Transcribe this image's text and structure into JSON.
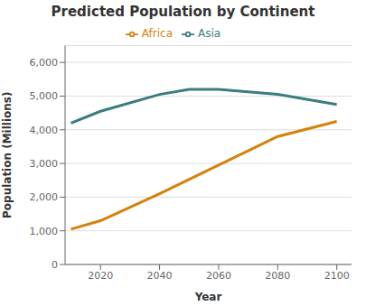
{
  "chart_data": {
    "type": "line",
    "title": "Predicted Population by Continent",
    "xlabel": "Year",
    "ylabel": "Population (Millions)",
    "series": [
      {
        "name": "Asia",
        "color": "#3a7d7e",
        "x": [
          2010,
          2020,
          2040,
          2050,
          2060,
          2080,
          2100
        ],
        "values": [
          4200,
          4550,
          5050,
          5200,
          5200,
          5050,
          4750
        ]
      },
      {
        "name": "Africa",
        "color": "#d4820a",
        "x": [
          2010,
          2020,
          2040,
          2060,
          2080,
          2100
        ],
        "values": [
          1050,
          1300,
          2100,
          2950,
          3800,
          4250
        ]
      }
    ],
    "xlim": [
      2008,
      2105
    ],
    "xticks": [
      2020,
      2040,
      2060,
      2080,
      2100
    ],
    "ylim": [
      0,
      6500
    ],
    "yticks": [
      0,
      {
        "value": 1000,
        "label": "1,000"
      },
      {
        "value": 2000,
        "label": "2,000"
      },
      {
        "value": 3000,
        "label": "3,000"
      },
      {
        "value": 4000,
        "label": "4,000"
      },
      {
        "value": 5000,
        "label": "5,000"
      },
      {
        "value": 6000,
        "label": "6,000"
      }
    ],
    "grid": "y",
    "legend": "top"
  }
}
